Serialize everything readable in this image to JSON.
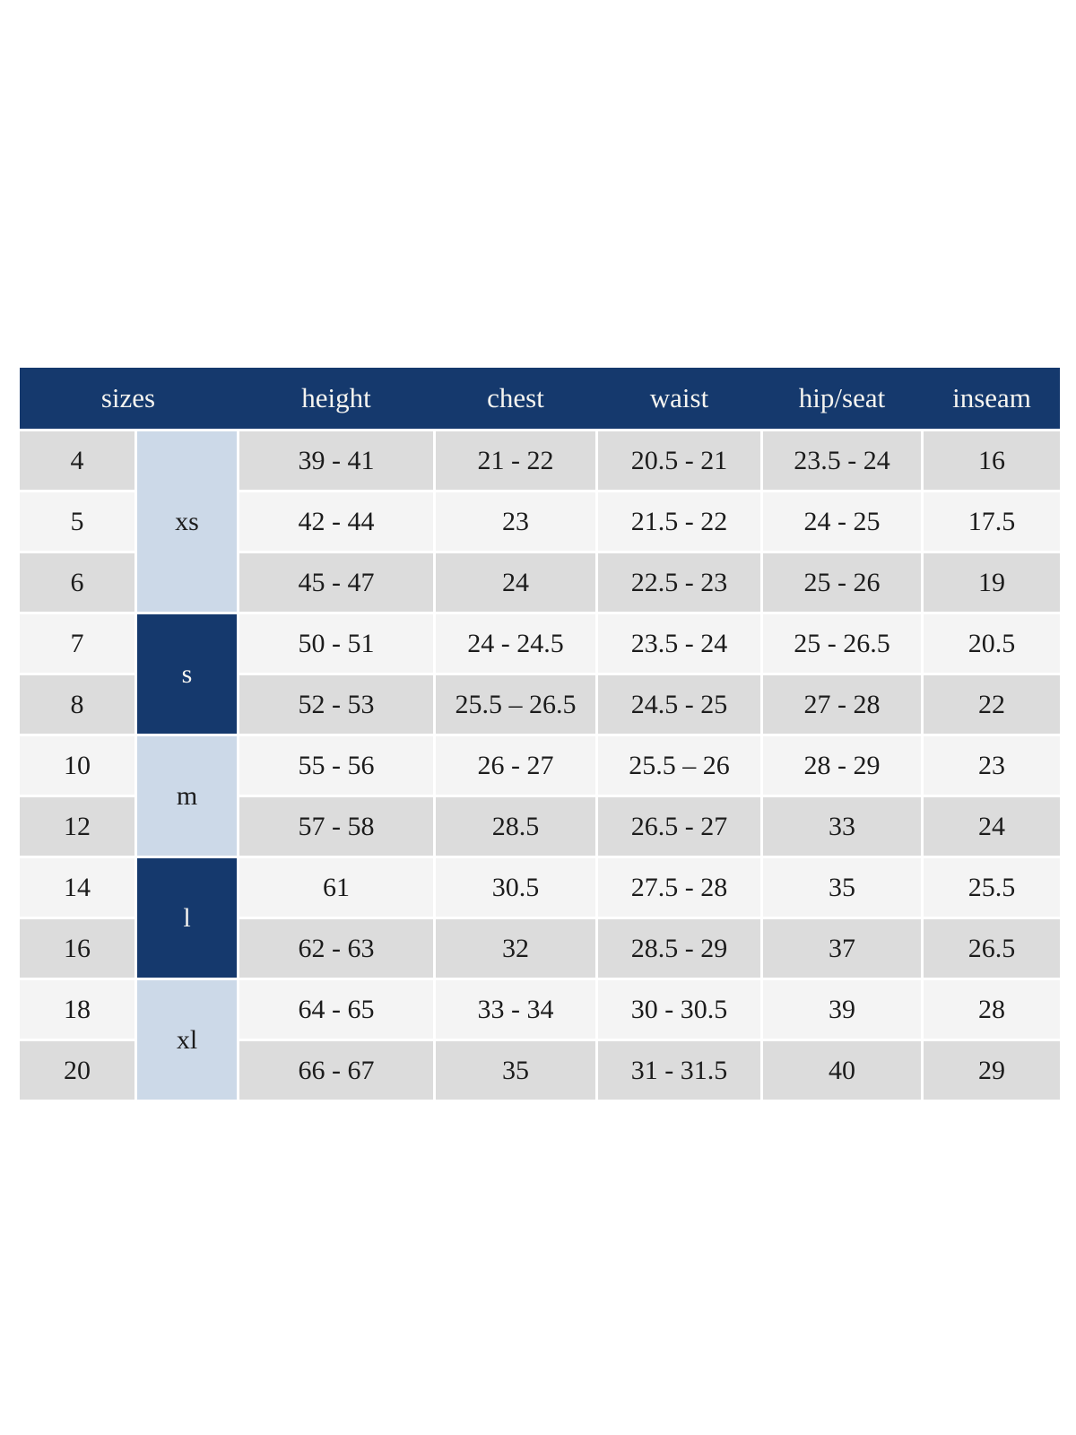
{
  "table": {
    "headers": {
      "sizes": "sizes",
      "height": "height",
      "chest": "chest",
      "waist": "waist",
      "hip_seat": "hip/seat",
      "inseam": "inseam"
    },
    "size_groups": [
      {
        "label": "xs",
        "style": "light",
        "span": 3
      },
      {
        "label": "s",
        "style": "dark",
        "span": 2
      },
      {
        "label": "m",
        "style": "light",
        "span": 2
      },
      {
        "label": "l",
        "style": "dark",
        "span": 2
      },
      {
        "label": "xl",
        "style": "light",
        "span": 2
      }
    ],
    "rows": [
      {
        "size": "4",
        "height": "39 - 41",
        "chest": "21 - 22",
        "waist": "20.5 - 21",
        "hip_seat": "23.5 - 24",
        "inseam": "16"
      },
      {
        "size": "5",
        "height": "42 - 44",
        "chest": "23",
        "waist": "21.5 - 22",
        "hip_seat": "24 - 25",
        "inseam": "17.5"
      },
      {
        "size": "6",
        "height": "45 - 47",
        "chest": "24",
        "waist": "22.5 - 23",
        "hip_seat": "25 - 26",
        "inseam": "19"
      },
      {
        "size": "7",
        "height": "50 - 51",
        "chest": "24 - 24.5",
        "waist": "23.5 - 24",
        "hip_seat": "25 - 26.5",
        "inseam": "20.5"
      },
      {
        "size": "8",
        "height": "52 - 53",
        "chest": "25.5 – 26.5",
        "waist": "24.5 - 25",
        "hip_seat": "27 - 28",
        "inseam": "22"
      },
      {
        "size": "10",
        "height": "55 - 56",
        "chest": "26 - 27",
        "waist": "25.5 – 26",
        "hip_seat": "28 - 29",
        "inseam": "23"
      },
      {
        "size": "12",
        "height": "57 - 58",
        "chest": "28.5",
        "waist": "26.5 - 27",
        "hip_seat": "33",
        "inseam": "24"
      },
      {
        "size": "14",
        "height": "61",
        "chest": "30.5",
        "waist": "27.5 - 28",
        "hip_seat": "35",
        "inseam": "25.5"
      },
      {
        "size": "16",
        "height": "62 - 63",
        "chest": "32",
        "waist": "28.5 - 29",
        "hip_seat": "37",
        "inseam": "26.5"
      },
      {
        "size": "18",
        "height": "64 - 65",
        "chest": "33 - 34",
        "waist": "30 - 30.5",
        "hip_seat": "39",
        "inseam": "28"
      },
      {
        "size": "20",
        "height": "66 - 67",
        "chest": "35",
        "waist": "31 - 31.5",
        "hip_seat": "40",
        "inseam": "29"
      }
    ]
  },
  "colors": {
    "navy": "#15396d",
    "light_blue": "#ccd9e8",
    "row_gray": "#dcdcdc",
    "row_light": "#f4f4f4",
    "header_text": "#f5f4f0",
    "body_text": "#1c1c1c",
    "page_bg": "#ffffff"
  }
}
